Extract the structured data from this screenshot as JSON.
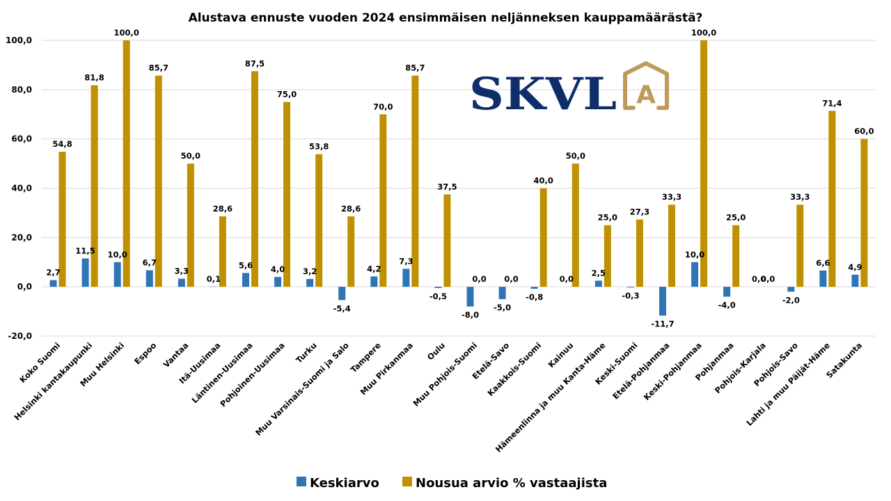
{
  "logo": {
    "text": "SKVL",
    "badge_letter": "A",
    "text_color": "#0d2e6b",
    "badge_color": "#c09a5b"
  },
  "chart_data": {
    "type": "bar",
    "title": "Alustava ennuste vuoden 2024 ensimmäisen neljänneksen kauppamäärästä?",
    "xlabel": "",
    "ylabel": "",
    "ylim": [
      -20,
      100
    ],
    "yticks": [
      -20,
      0,
      20,
      40,
      60,
      80,
      100
    ],
    "ytick_labels": [
      "-20,0",
      "0,0",
      "20,0",
      "40,0",
      "60,0",
      "80,0",
      "100,0"
    ],
    "grid": true,
    "legend_position": "bottom",
    "categories": [
      "Koko Suomi",
      "Helsinki kantakaupunki",
      "Muu Helsinki",
      "Espoo",
      "Vantaa",
      "Itä-Uusimaa",
      "Läntinen-Uusimaa",
      "Pohjoinen-Uusimaa",
      "Turku",
      "Muu Varsinais-Suomi ja Salo",
      "Tampere",
      "Muu Pirkanmaa",
      "Oulu",
      "Muu Pohjois-Suomi",
      "Etelä-Savo",
      "Kaakkois-Suomi",
      "Kainuu",
      "Hämeenlinna ja muu Kanta-Häme",
      "Keski-Suomi",
      "Etelä-Pohjanmaa",
      "Keski-Pohjanmaa",
      "Pohjanmaa",
      "Pohjois-Karjala",
      "Pohjois-Savo",
      "Lahti ja muu Päijät-Häme",
      "Satakunta"
    ],
    "series": [
      {
        "name": "Keskiarvo",
        "color": "#2e75b6",
        "values": [
          2.7,
          11.5,
          10.0,
          6.7,
          3.3,
          0.1,
          5.6,
          4.0,
          3.2,
          -5.4,
          4.2,
          7.3,
          -0.5,
          -8.0,
          -5.0,
          -0.8,
          0.0,
          2.5,
          -0.3,
          -11.7,
          10.0,
          -4.0,
          0.0,
          -2.0,
          6.6,
          4.9
        ],
        "labels": [
          "2,7",
          "11,5",
          "10,0",
          "6,7",
          "3,3",
          "0,1",
          "5,6",
          "4,0",
          "3,2",
          "-5,4",
          "4,2",
          "7,3",
          "-0,5",
          "-8,0",
          "-5,0",
          "-0,8",
          "0,0",
          "2,5",
          "-0,3",
          "-11,7",
          "10,0",
          "-4,0",
          "0,0",
          "-2,0",
          "6,6",
          "4,9"
        ]
      },
      {
        "name": "Nousua arvio % vastaajista",
        "color": "#bf9000",
        "values": [
          54.8,
          81.8,
          100.0,
          85.7,
          50.0,
          28.6,
          87.5,
          75.0,
          53.8,
          28.6,
          70.0,
          85.7,
          37.5,
          0.0,
          0.0,
          40.0,
          50.0,
          25.0,
          27.3,
          33.3,
          100.0,
          25.0,
          0.0,
          33.3,
          71.4,
          60.0
        ],
        "labels": [
          "54,8",
          "81,8",
          "100,0",
          "85,7",
          "50,0",
          "28,6",
          "87,5",
          "75,0",
          "53,8",
          "28,6",
          "70,0",
          "85,7",
          "37,5",
          "0,0",
          "0,0",
          "40,0",
          "50,0",
          "25,0",
          "27,3",
          "33,3",
          "100,0",
          "25,0",
          "0,0",
          "33,3",
          "71,4",
          "60,0"
        ]
      }
    ]
  }
}
